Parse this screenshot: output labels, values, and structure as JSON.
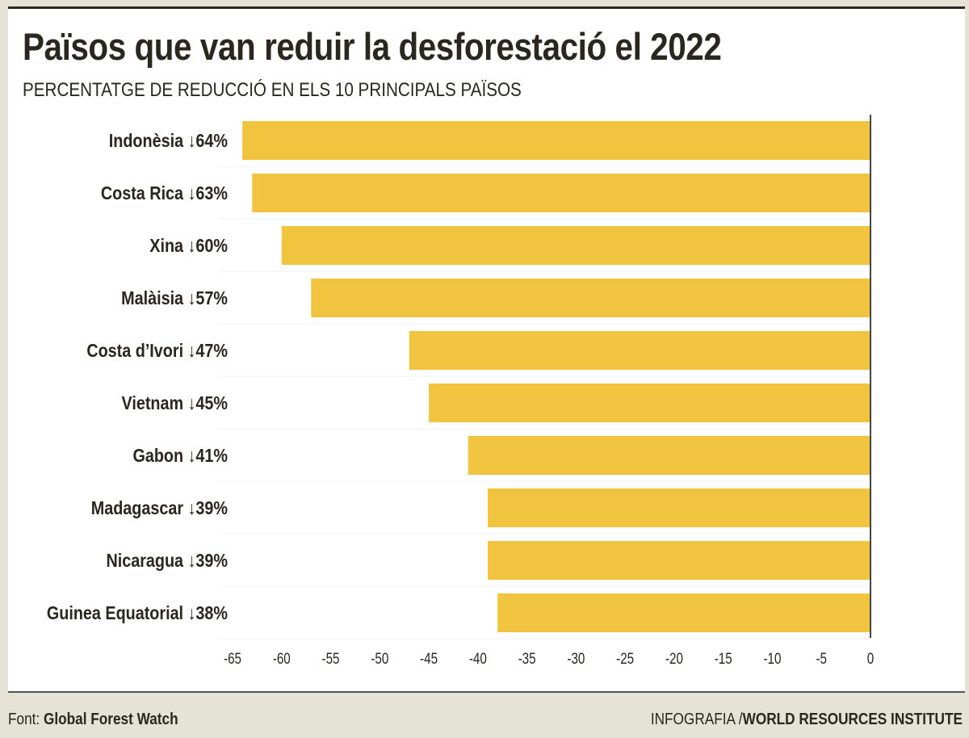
{
  "chart_data": {
    "type": "bar",
    "orientation": "horizontal",
    "title": "Països que van reduir la desforestació el 2022",
    "subtitle": "PERCENTATGE DE REDUCCIÓ EN ELS 10 PRINCIPALS PAÏSOS",
    "categories": [
      "Indonèsia",
      "Costa Rica",
      "Xina",
      "Malàisia",
      "Costa d’Ivori",
      "Vietnam",
      "Gabon",
      "Madagascar",
      "Nicaragua",
      "Guinea Equatorial"
    ],
    "labels": [
      "Indonèsia ↓64%",
      "Costa Rica ↓63%",
      "Xina ↓60%",
      "Malàisia ↓57%",
      "Costa d’Ivori ↓47%",
      "Vietnam ↓45%",
      "Gabon ↓41%",
      "Madagascar ↓39%",
      "Nicaragua ↓39%",
      "Guinea Equatorial ↓38%"
    ],
    "values": [
      -64,
      -63,
      -60,
      -57,
      -47,
      -45,
      -41,
      -39,
      -39,
      -38
    ],
    "xlim": [
      -65,
      0
    ],
    "xticks": [
      "-65",
      "-60",
      "-55",
      "-50",
      "-45",
      "-40",
      "-35",
      "-30",
      "-25",
      "-20",
      "-15",
      "-10",
      "-5",
      "0"
    ],
    "grid": false,
    "bar_color": "#f0c43f",
    "text_color": "#2a2620",
    "background_color": "#e4e3d6"
  },
  "footer": {
    "source_label": "Font: ",
    "source": "Global Forest Watch",
    "credit_label": "INFOGRAFIA /",
    "credit": "WORLD RESOURCES INSTITUTE"
  }
}
